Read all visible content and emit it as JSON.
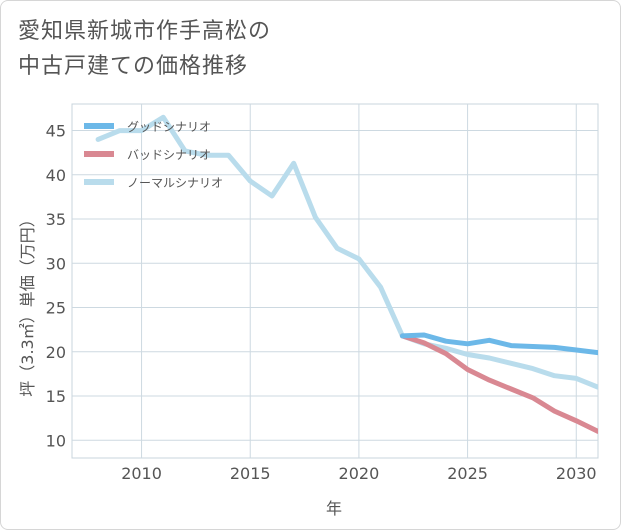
{
  "chart_data": {
    "type": "line",
    "title_lines": [
      "愛知県新城市作手高松の",
      "中古戸建ての価格推移"
    ],
    "xlabel": "年",
    "ylabel": "坪（3.3㎡）単価（万円）",
    "xlim": [
      2006.8,
      2031
    ],
    "ylim": [
      8,
      48
    ],
    "x_ticks": [
      2010,
      2015,
      2020,
      2025,
      2030
    ],
    "y_ticks": [
      10,
      15,
      20,
      25,
      30,
      35,
      40,
      45
    ],
    "grid": true,
    "legend_position": "top-left",
    "series": [
      {
        "name": "グッドシナリオ",
        "color": "#6cb8e8",
        "x": [
          2022,
          2023,
          2024,
          2025,
          2026,
          2027,
          2028,
          2029,
          2030,
          2031
        ],
        "values": [
          21.8,
          21.9,
          21.2,
          20.9,
          21.3,
          20.7,
          20.6,
          20.5,
          20.2,
          19.9
        ]
      },
      {
        "name": "バッドシナリオ",
        "color": "#d98892",
        "x": [
          2022,
          2023,
          2024,
          2025,
          2026,
          2027,
          2028,
          2029,
          2030,
          2031
        ],
        "values": [
          21.8,
          21.0,
          19.8,
          18.0,
          16.8,
          15.8,
          14.8,
          13.3,
          12.2,
          11.0
        ]
      },
      {
        "name": "ノーマルシナリオ",
        "color": "#b9dcec",
        "x": [
          2008,
          2009,
          2010,
          2011,
          2012,
          2013,
          2014,
          2015,
          2016,
          2017,
          2018,
          2019,
          2020,
          2021,
          2022,
          2023,
          2024,
          2025,
          2026,
          2027,
          2028,
          2029,
          2030,
          2031
        ],
        "values": [
          44.0,
          45.0,
          45.0,
          46.5,
          42.7,
          42.2,
          42.2,
          39.3,
          37.6,
          41.3,
          35.2,
          31.7,
          30.5,
          27.3,
          21.8,
          20.9,
          20.4,
          19.7,
          19.3,
          18.7,
          18.1,
          17.3,
          17.0,
          16.0
        ]
      }
    ]
  }
}
